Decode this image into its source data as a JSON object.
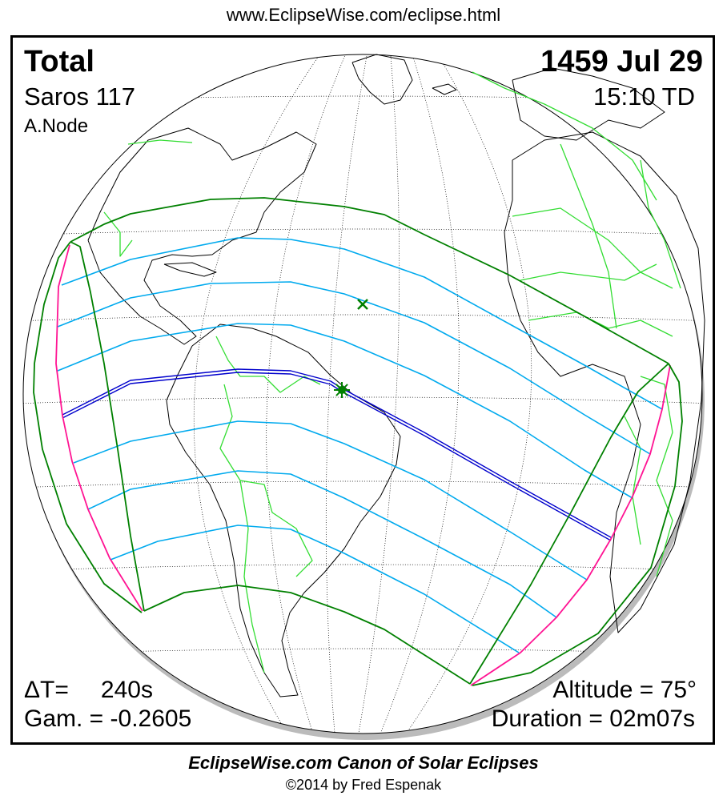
{
  "header": {
    "url": "www.EclipseWise.com/eclipse.html"
  },
  "eclipse": {
    "type": "Total",
    "date": "1459 Jul 29",
    "saros": "Saros 117",
    "time": "15:10 TD",
    "node": "A.Node",
    "delta_t_label": "ΔT=",
    "delta_t_value": "240s",
    "gamma": "Gam. = -0.2605",
    "altitude": "Altitude = 75°",
    "duration": "Duration = 02m07s"
  },
  "footer": {
    "title": "EclipseWise.com Canon of Solar Eclipses",
    "copyright": "©2014 by Fred Espenak"
  },
  "map": {
    "projection": "orthographic globe",
    "markers": [
      {
        "name": "greatest-eclipse",
        "icon": "star-icon"
      },
      {
        "name": "sub-solar-point",
        "icon": "x-mark-icon"
      }
    ],
    "colors": {
      "penumbral_limits": "#008000",
      "rise_set_curves": "#ff1493",
      "partial_magnitude_lines": "#00aaee",
      "central_path": "#0000cc",
      "borders": "#33dd33",
      "coastlines": "#000000",
      "night_shadow": "#bbbbbb"
    }
  }
}
